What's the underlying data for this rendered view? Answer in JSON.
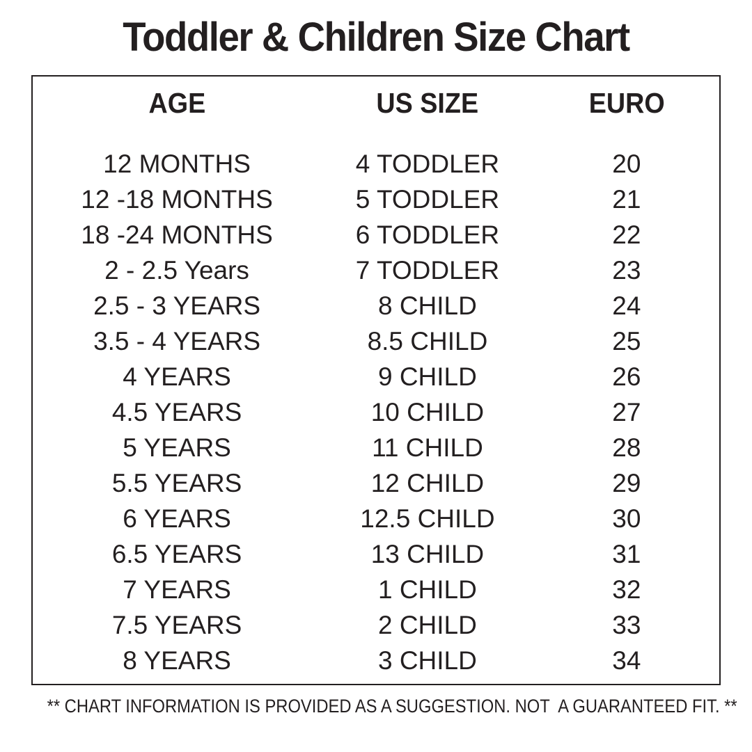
{
  "title": "Toddler & Children Size Chart",
  "footer_note": "** CHART INFORMATION IS PROVIDED AS A SUGGESTION. NOT  A GUARANTEED FIT. **",
  "colors": {
    "text": "#231f20",
    "border": "#231f20",
    "background": "#ffffff"
  },
  "chart_data": {
    "type": "table",
    "title": "Toddler & Children Size Chart",
    "columns": [
      "AGE",
      "US SIZE",
      "EURO"
    ],
    "rows": [
      [
        "12 MONTHS",
        "4 TODDLER",
        "20"
      ],
      [
        "12 -18 MONTHS",
        "5 TODDLER",
        "21"
      ],
      [
        "18 -24 MONTHS",
        "6 TODDLER",
        "22"
      ],
      [
        "2 - 2.5 Years",
        "7 TODDLER",
        "23"
      ],
      [
        "2.5 - 3 YEARS",
        "8 CHILD",
        "24"
      ],
      [
        "3.5 - 4 YEARS",
        "8.5 CHILD",
        "25"
      ],
      [
        "4 YEARS",
        "9 CHILD",
        "26"
      ],
      [
        "4.5 YEARS",
        "10 CHILD",
        "27"
      ],
      [
        "5 YEARS",
        "11 CHILD",
        "28"
      ],
      [
        "5.5 YEARS",
        "12 CHILD",
        "29"
      ],
      [
        "6 YEARS",
        "12.5 CHILD",
        "30"
      ],
      [
        "6.5 YEARS",
        "13 CHILD",
        "31"
      ],
      [
        "7 YEARS",
        "1 CHILD",
        "32"
      ],
      [
        "7.5 YEARS",
        "2 CHILD",
        "33"
      ],
      [
        "8 YEARS",
        "3 CHILD",
        "34"
      ]
    ],
    "layout": {
      "grid": false,
      "column_alignment": [
        "center",
        "center",
        "center"
      ],
      "border": "single outer box"
    }
  }
}
